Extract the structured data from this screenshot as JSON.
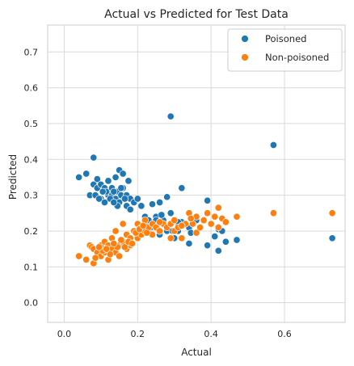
{
  "chart_data": {
    "type": "scatter",
    "title": "Actual vs Predicted for Test Data",
    "xlabel": "Actual",
    "ylabel": "Predicted",
    "xlim": [
      -0.045,
      0.765
    ],
    "ylim": [
      -0.055,
      0.775
    ],
    "xticks": [
      "0.0",
      "0.2",
      "0.4",
      "0.6"
    ],
    "xtick_values": [
      0.0,
      0.2,
      0.4,
      0.6
    ],
    "yticks": [
      "0.0",
      "0.1",
      "0.2",
      "0.3",
      "0.4",
      "0.5",
      "0.6",
      "0.7"
    ],
    "ytick_values": [
      0.0,
      0.1,
      0.2,
      0.3,
      0.4,
      0.5,
      0.6,
      0.7
    ],
    "grid": true,
    "legend_position": "top-right",
    "series": [
      {
        "name": "Poisoned",
        "color": "#1f77b4",
        "points": [
          [
            0.04,
            0.35
          ],
          [
            0.06,
            0.36
          ],
          [
            0.08,
            0.405
          ],
          [
            0.07,
            0.3
          ],
          [
            0.08,
            0.33
          ],
          [
            0.09,
            0.345
          ],
          [
            0.085,
            0.3
          ],
          [
            0.09,
            0.32
          ],
          [
            0.1,
            0.33
          ],
          [
            0.1,
            0.29
          ],
          [
            0.11,
            0.32
          ],
          [
            0.11,
            0.28
          ],
          [
            0.12,
            0.34
          ],
          [
            0.12,
            0.3
          ],
          [
            0.115,
            0.31
          ],
          [
            0.13,
            0.3
          ],
          [
            0.13,
            0.32
          ],
          [
            0.14,
            0.35
          ],
          [
            0.14,
            0.29
          ],
          [
            0.145,
            0.31
          ],
          [
            0.15,
            0.37
          ],
          [
            0.15,
            0.28
          ],
          [
            0.155,
            0.3
          ],
          [
            0.16,
            0.36
          ],
          [
            0.16,
            0.32
          ],
          [
            0.17,
            0.3
          ],
          [
            0.17,
            0.27
          ],
          [
            0.175,
            0.34
          ],
          [
            0.18,
            0.29
          ],
          [
            0.18,
            0.26
          ],
          [
            0.19,
            0.28
          ],
          [
            0.2,
            0.29
          ],
          [
            0.125,
            0.29
          ],
          [
            0.135,
            0.31
          ],
          [
            0.145,
            0.27
          ],
          [
            0.165,
            0.29
          ],
          [
            0.135,
            0.28
          ],
          [
            0.155,
            0.32
          ],
          [
            0.105,
            0.31
          ],
          [
            0.095,
            0.29
          ],
          [
            0.21,
            0.27
          ],
          [
            0.22,
            0.24
          ],
          [
            0.22,
            0.22
          ],
          [
            0.23,
            0.23
          ],
          [
            0.23,
            0.2
          ],
          [
            0.24,
            0.275
          ],
          [
            0.25,
            0.24
          ],
          [
            0.26,
            0.28
          ],
          [
            0.26,
            0.19
          ],
          [
            0.27,
            0.23
          ],
          [
            0.28,
            0.295
          ],
          [
            0.28,
            0.2
          ],
          [
            0.29,
            0.25
          ],
          [
            0.29,
            0.52
          ],
          [
            0.3,
            0.23
          ],
          [
            0.3,
            0.18
          ],
          [
            0.31,
            0.2
          ],
          [
            0.32,
            0.32
          ],
          [
            0.32,
            0.225
          ],
          [
            0.34,
            0.21
          ],
          [
            0.34,
            0.165
          ],
          [
            0.345,
            0.195
          ],
          [
            0.36,
            0.23
          ],
          [
            0.39,
            0.285
          ],
          [
            0.39,
            0.16
          ],
          [
            0.41,
            0.185
          ],
          [
            0.42,
            0.145
          ],
          [
            0.42,
            0.205
          ],
          [
            0.43,
            0.2
          ],
          [
            0.44,
            0.17
          ],
          [
            0.47,
            0.175
          ],
          [
            0.57,
            0.44
          ],
          [
            0.73,
            0.18
          ],
          [
            0.245,
            0.21
          ],
          [
            0.265,
            0.245
          ],
          [
            0.25,
            0.23
          ],
          [
            0.235,
            0.21
          ],
          [
            0.275,
            0.215
          ],
          [
            0.295,
            0.2
          ],
          [
            0.31,
            0.225
          ]
        ]
      },
      {
        "name": "Non-poisoned",
        "color": "#ff7f0e",
        "points": [
          [
            0.04,
            0.13
          ],
          [
            0.06,
            0.12
          ],
          [
            0.07,
            0.16
          ],
          [
            0.075,
            0.155
          ],
          [
            0.08,
            0.11
          ],
          [
            0.08,
            0.15
          ],
          [
            0.09,
            0.14
          ],
          [
            0.1,
            0.13
          ],
          [
            0.1,
            0.16
          ],
          [
            0.11,
            0.17
          ],
          [
            0.11,
            0.14
          ],
          [
            0.12,
            0.16
          ],
          [
            0.12,
            0.12
          ],
          [
            0.13,
            0.15
          ],
          [
            0.13,
            0.18
          ],
          [
            0.14,
            0.14
          ],
          [
            0.14,
            0.2
          ],
          [
            0.15,
            0.16
          ],
          [
            0.15,
            0.13
          ],
          [
            0.16,
            0.22
          ],
          [
            0.16,
            0.17
          ],
          [
            0.17,
            0.15
          ],
          [
            0.17,
            0.19
          ],
          [
            0.18,
            0.16
          ],
          [
            0.18,
            0.18
          ],
          [
            0.19,
            0.2
          ],
          [
            0.2,
            0.22
          ],
          [
            0.2,
            0.18
          ],
          [
            0.21,
            0.19
          ],
          [
            0.21,
            0.21
          ],
          [
            0.22,
            0.2
          ],
          [
            0.22,
            0.23
          ],
          [
            0.23,
            0.21
          ],
          [
            0.24,
            0.19
          ],
          [
            0.24,
            0.22
          ],
          [
            0.25,
            0.21
          ],
          [
            0.26,
            0.2
          ],
          [
            0.27,
            0.22
          ],
          [
            0.28,
            0.21
          ],
          [
            0.29,
            0.18
          ],
          [
            0.29,
            0.22
          ],
          [
            0.3,
            0.2
          ],
          [
            0.3,
            0.23
          ],
          [
            0.31,
            0.21
          ],
          [
            0.32,
            0.18
          ],
          [
            0.33,
            0.22
          ],
          [
            0.34,
            0.25
          ],
          [
            0.35,
            0.22
          ],
          [
            0.36,
            0.24
          ],
          [
            0.37,
            0.21
          ],
          [
            0.38,
            0.23
          ],
          [
            0.39,
            0.25
          ],
          [
            0.4,
            0.22
          ],
          [
            0.41,
            0.24
          ],
          [
            0.42,
            0.265
          ],
          [
            0.42,
            0.21
          ],
          [
            0.43,
            0.235
          ],
          [
            0.44,
            0.225
          ],
          [
            0.47,
            0.24
          ],
          [
            0.57,
            0.25
          ],
          [
            0.73,
            0.25
          ],
          [
            0.105,
            0.145
          ],
          [
            0.125,
            0.135
          ],
          [
            0.145,
            0.155
          ],
          [
            0.155,
            0.175
          ],
          [
            0.165,
            0.155
          ],
          [
            0.175,
            0.17
          ],
          [
            0.185,
            0.165
          ],
          [
            0.195,
            0.195
          ],
          [
            0.205,
            0.205
          ],
          [
            0.215,
            0.215
          ],
          [
            0.225,
            0.195
          ],
          [
            0.085,
            0.125
          ],
          [
            0.095,
            0.155
          ],
          [
            0.115,
            0.15
          ],
          [
            0.135,
            0.165
          ],
          [
            0.26,
            0.225
          ],
          [
            0.32,
            0.215
          ],
          [
            0.345,
            0.235
          ],
          [
            0.36,
            0.195
          ]
        ]
      }
    ]
  }
}
